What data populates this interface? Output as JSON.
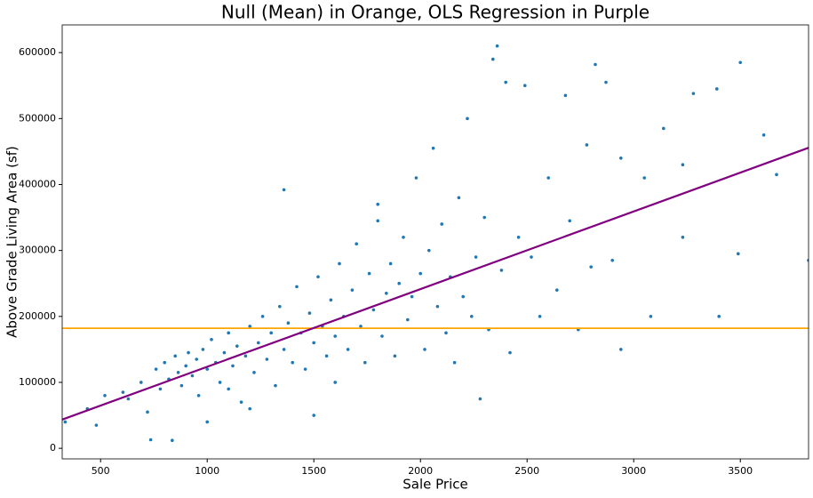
{
  "chart_data": {
    "type": "scatter",
    "title": "Null (Mean) in Orange, OLS Regression in Purple",
    "x_label": "Sale Price",
    "y_label": "Above Grade Living Area (sf)",
    "xlim": [
      320,
      3820
    ],
    "ylim": [
      -16000,
      642000
    ],
    "xticks": [
      500,
      1000,
      1500,
      2000,
      2500,
      3000,
      3500
    ],
    "yticks": [
      0,
      100000,
      200000,
      300000,
      400000,
      500000,
      600000
    ],
    "series": [
      {
        "color": "#1f77b4",
        "x": [
          334,
          438,
          480,
          520,
          605,
          630,
          690,
          720,
          735,
          760,
          780,
          800,
          820,
          836,
          850,
          864,
          880,
          900,
          912,
          930,
          950,
          960,
          980,
          1000,
          1020,
          1040,
          1060,
          1080,
          1100,
          1120,
          1140,
          1160,
          1180,
          1200,
          1220,
          1240,
          1260,
          1280,
          1300,
          1320,
          1340,
          1360,
          1380,
          1400,
          1420,
          1440,
          1460,
          1480,
          1500,
          1520,
          1540,
          1560,
          1580,
          1600,
          1620,
          1640,
          1660,
          1680,
          1700,
          1720,
          1740,
          1760,
          1780,
          1800,
          1820,
          1840,
          1860,
          1880,
          1900,
          1920,
          1940,
          1960,
          1980,
          2000,
          2020,
          2040,
          2060,
          2080,
          2100,
          2120,
          2140,
          2160,
          2180,
          2200,
          2220,
          2240,
          2260,
          2280,
          2300,
          2320,
          2340,
          2360,
          2380,
          2400,
          2420,
          2460,
          2490,
          2520,
          2560,
          2600,
          2640,
          2680,
          2700,
          2740,
          2780,
          2800,
          2820,
          2870,
          2900,
          2940,
          3080,
          3140,
          3230,
          3280,
          3390,
          3400,
          3490,
          3500,
          3610,
          3670,
          3820,
          1360,
          2940,
          3230,
          3050,
          1800,
          1200,
          1500,
          1000,
          1600,
          1100
        ],
        "values": [
          40000,
          60000,
          35000,
          80000,
          85000,
          75000,
          100000,
          55000,
          13000,
          120000,
          90000,
          130000,
          105000,
          12000,
          140000,
          115000,
          95000,
          125000,
          145000,
          110000,
          135000,
          80000,
          150000,
          120000,
          165000,
          130000,
          100000,
          145000,
          175000,
          125000,
          155000,
          70000,
          140000,
          185000,
          115000,
          160000,
          200000,
          135000,
          175000,
          95000,
          215000,
          150000,
          190000,
          130000,
          245000,
          175000,
          120000,
          205000,
          160000,
          260000,
          185000,
          140000,
          225000,
          170000,
          280000,
          200000,
          150000,
          240000,
          310000,
          185000,
          130000,
          265000,
          210000,
          345000,
          170000,
          235000,
          280000,
          140000,
          250000,
          320000,
          195000,
          230000,
          410000,
          265000,
          150000,
          300000,
          455000,
          215000,
          340000,
          175000,
          260000,
          130000,
          380000,
          230000,
          500000,
          200000,
          290000,
          75000,
          350000,
          180000,
          590000,
          610000,
          270000,
          555000,
          145000,
          320000,
          550000,
          290000,
          200000,
          410000,
          240000,
          535000,
          345000,
          180000,
          460000,
          275000,
          582000,
          555000,
          285000,
          150000,
          200000,
          485000,
          320000,
          538000,
          545000,
          200000,
          295000,
          585000,
          475000,
          415000,
          285000,
          392000,
          440000,
          430000,
          410000,
          370000,
          60000,
          50000,
          40000,
          100000,
          90000
        ]
      }
    ],
    "lines": [
      {
        "color": "#800080",
        "x": [
          320,
          3820
        ],
        "values": [
          43600,
          455700
        ]
      }
    ],
    "hline": {
      "color": "#ffa500",
      "value": 182000
    }
  }
}
